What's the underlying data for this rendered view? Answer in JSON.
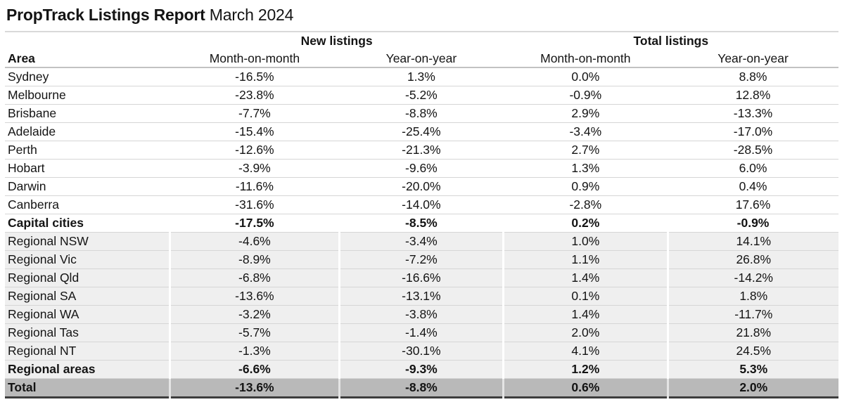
{
  "title": {
    "bold": "PropTrack Listings Report",
    "regular": "March 2024"
  },
  "colors": {
    "shaded_row_bg": "#efefef",
    "total_row_bg": "#b9b9b9",
    "row_separator": "#d6d6d6",
    "header_rule": "#c2c2c2",
    "top_rule": "#d9d9d9",
    "bottom_rule": "#3d3d3d",
    "text": "#141414"
  },
  "chart_data": {
    "type": "table",
    "title": "PropTrack Listings Report March 2024",
    "column_groups": [
      {
        "label": "",
        "span": 1
      },
      {
        "label": "New listings",
        "span": 2
      },
      {
        "label": "Total listings",
        "span": 2
      }
    ],
    "columns": [
      "Area",
      "Month-on-month",
      "Year-on-year",
      "Month-on-month",
      "Year-on-year"
    ],
    "rows": [
      {
        "area": "Sydney",
        "values": [
          "-16.5%",
          "1.3%",
          "0.0%",
          "8.8%"
        ],
        "style": "plain"
      },
      {
        "area": "Melbourne",
        "values": [
          "-23.8%",
          "-5.2%",
          "-0.9%",
          "12.8%"
        ],
        "style": "plain"
      },
      {
        "area": "Brisbane",
        "values": [
          "-7.7%",
          "-8.8%",
          "2.9%",
          "-13.3%"
        ],
        "style": "plain"
      },
      {
        "area": "Adelaide",
        "values": [
          "-15.4%",
          "-25.4%",
          "-3.4%",
          "-17.0%"
        ],
        "style": "plain"
      },
      {
        "area": "Perth",
        "values": [
          "-12.6%",
          "-21.3%",
          "2.7%",
          "-28.5%"
        ],
        "style": "plain"
      },
      {
        "area": "Hobart",
        "values": [
          "-3.9%",
          "-9.6%",
          "1.3%",
          "6.0%"
        ],
        "style": "plain"
      },
      {
        "area": "Darwin",
        "values": [
          "-11.6%",
          "-20.0%",
          "0.9%",
          "0.4%"
        ],
        "style": "plain"
      },
      {
        "area": "Canberra",
        "values": [
          "-31.6%",
          "-14.0%",
          "-2.8%",
          "17.6%"
        ],
        "style": "plain"
      },
      {
        "area": "Capital cities",
        "values": [
          "-17.5%",
          "-8.5%",
          "0.2%",
          "-0.9%"
        ],
        "style": "plain-bold"
      },
      {
        "area": "Regional NSW",
        "values": [
          "-4.6%",
          "-3.4%",
          "1.0%",
          "14.1%"
        ],
        "style": "shaded"
      },
      {
        "area": "Regional Vic",
        "values": [
          "-8.9%",
          "-7.2%",
          "1.1%",
          "26.8%"
        ],
        "style": "shaded"
      },
      {
        "area": "Regional Qld",
        "values": [
          "-6.8%",
          "-16.6%",
          "1.4%",
          "-14.2%"
        ],
        "style": "shaded"
      },
      {
        "area": "Regional SA",
        "values": [
          "-13.6%",
          "-13.1%",
          "0.1%",
          "1.8%"
        ],
        "style": "shaded"
      },
      {
        "area": "Regional WA",
        "values": [
          "-3.2%",
          "-3.8%",
          "1.4%",
          "-11.7%"
        ],
        "style": "shaded"
      },
      {
        "area": "Regional Tas",
        "values": [
          "-5.7%",
          "-1.4%",
          "2.0%",
          "21.8%"
        ],
        "style": "shaded"
      },
      {
        "area": "Regional NT",
        "values": [
          "-1.3%",
          "-30.1%",
          "4.1%",
          "24.5%"
        ],
        "style": "shaded"
      },
      {
        "area": "Regional areas",
        "values": [
          "-6.6%",
          "-9.3%",
          "1.2%",
          "5.3%"
        ],
        "style": "shaded-bold"
      },
      {
        "area": "Total",
        "values": [
          "-13.6%",
          "-8.8%",
          "0.6%",
          "2.0%"
        ],
        "style": "total"
      }
    ]
  }
}
